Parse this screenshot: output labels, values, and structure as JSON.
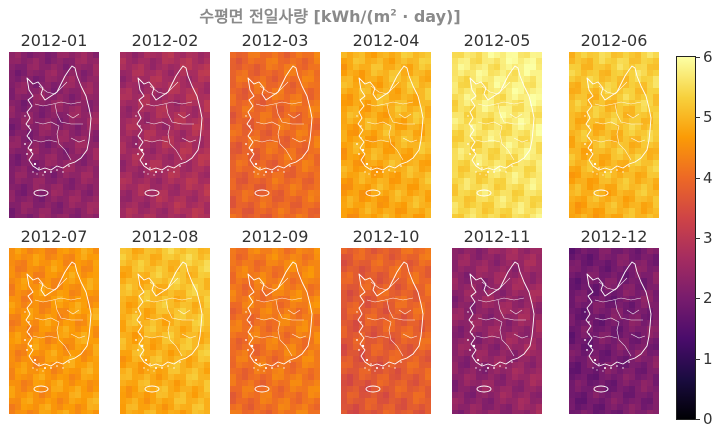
{
  "title": {
    "main": "수평면 전일사량 [kWh/(m",
    "sup": "2",
    "tail": " · day)]"
  },
  "units": "kWh/(m² · day)",
  "colormap": {
    "name": "inferno",
    "stops": [
      "#000004",
      "#1b0c41",
      "#4a0c6b",
      "#781c6d",
      "#a52c60",
      "#cf4446",
      "#ed6925",
      "#fb9b06",
      "#f7d13d",
      "#fcffa4"
    ]
  },
  "colorbar": {
    "min": 0,
    "max": 6,
    "ticks": [
      "0",
      "1",
      "2",
      "3",
      "4",
      "5",
      "6"
    ]
  },
  "panels": [
    {
      "label": "2012-01",
      "mean": 2.3,
      "north_bias": 0.0
    },
    {
      "label": "2012-02",
      "mean": 2.7,
      "north_bias": 0.0
    },
    {
      "label": "2012-03",
      "mean": 4.0,
      "north_bias": 0.1
    },
    {
      "label": "2012-04",
      "mean": 4.9,
      "north_bias": 0.2
    },
    {
      "label": "2012-05",
      "mean": 5.6,
      "north_bias": 0.3
    },
    {
      "label": "2012-06",
      "mean": 5.1,
      "north_bias": 0.4
    },
    {
      "label": "2012-07",
      "mean": 4.6,
      "north_bias": -0.1
    },
    {
      "label": "2012-08",
      "mean": 5.0,
      "north_bias": 0.3
    },
    {
      "label": "2012-09",
      "mean": 4.2,
      "north_bias": 0.2
    },
    {
      "label": "2012-10",
      "mean": 3.8,
      "north_bias": 0.2
    },
    {
      "label": "2012-11",
      "mean": 2.4,
      "north_bias": 0.1
    },
    {
      "label": "2012-12",
      "mean": 2.0,
      "north_bias": 0.0
    }
  ]
}
